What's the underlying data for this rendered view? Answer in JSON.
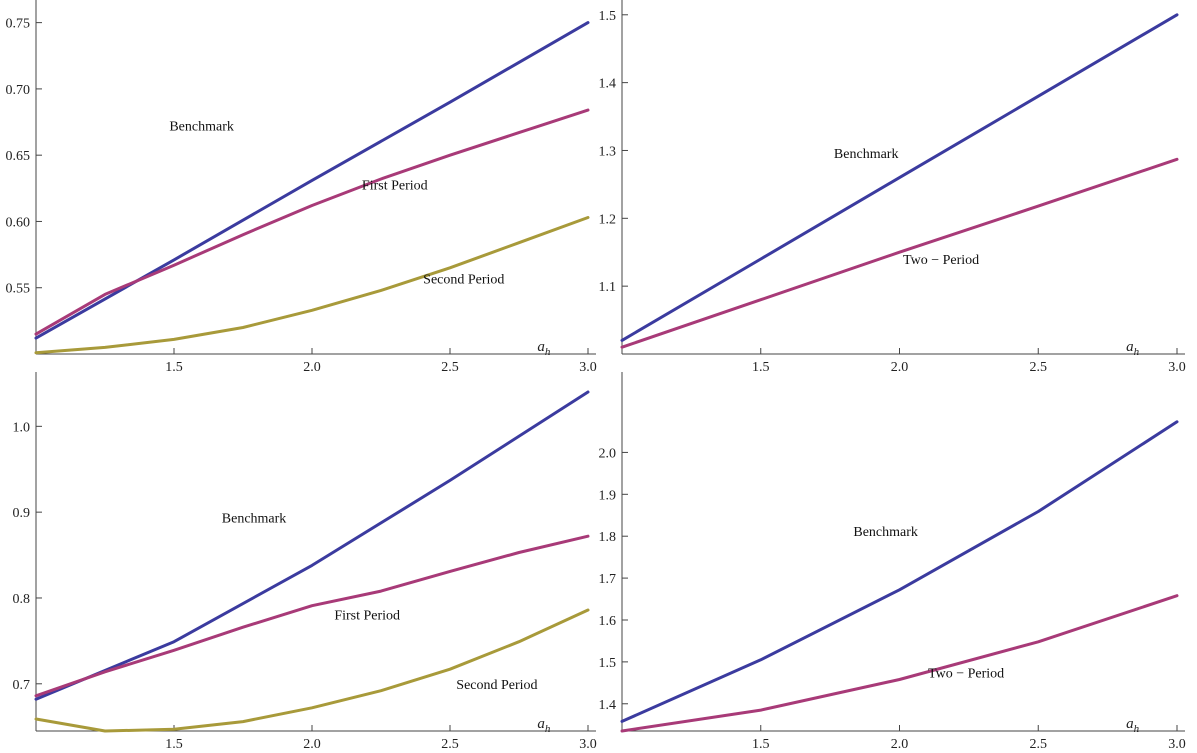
{
  "colors": {
    "benchmark": "#3b3b9f",
    "first": "#a83a78",
    "second": "#a89a3a",
    "axis": "#444444"
  },
  "chart_data": [
    {
      "type": "line",
      "x_label": "a_h",
      "x_label_sub": "h",
      "xlim": [
        1.0,
        3.0
      ],
      "ylim": [
        0.5,
        0.755
      ],
      "xticks": [
        "1.5",
        "2.0",
        "2.5",
        "3.0"
      ],
      "yticks": [
        "0.55",
        "0.60",
        "0.65",
        "0.70",
        "0.75"
      ],
      "series": [
        {
          "name": "Benchmark",
          "color": "#3b3b9f",
          "x": [
            1.0,
            1.5,
            2.0,
            2.5,
            3.0
          ],
          "y": [
            0.512,
            0.571,
            0.631,
            0.69,
            0.75
          ],
          "label_at": [
            1.6,
            0.6685
          ]
        },
        {
          "name": "First Period",
          "color": "#a83a78",
          "x": [
            1.0,
            1.25,
            1.5,
            1.75,
            2.0,
            2.25,
            2.5,
            2.75,
            3.0
          ],
          "y": [
            0.515,
            0.545,
            0.567,
            0.59,
            0.612,
            0.632,
            0.65,
            0.667,
            0.684
          ],
          "label_at": [
            2.3,
            0.624
          ]
        },
        {
          "name": "Second Period",
          "color": "#a89a3a",
          "x": [
            1.0,
            1.25,
            1.5,
            1.75,
            2.0,
            2.25,
            2.5,
            2.75,
            3.0
          ],
          "y": [
            0.501,
            0.505,
            0.511,
            0.52,
            0.533,
            0.548,
            0.565,
            0.584,
            0.603
          ],
          "label_at": [
            2.55,
            0.553
          ]
        }
      ]
    },
    {
      "type": "line",
      "x_label": "a",
      "x_label_sub": "h",
      "xlim": [
        1.0,
        3.0
      ],
      "ylim": [
        1.0,
        1.51
      ],
      "xticks": [
        "1.5",
        "2.0",
        "2.5",
        "3.0"
      ],
      "yticks": [
        "1.1",
        "1.2",
        "1.3",
        "1.4",
        "1.5"
      ],
      "series": [
        {
          "name": "Benchmark",
          "color": "#3b3b9f",
          "x": [
            1.0,
            1.5,
            2.0,
            2.5,
            3.0
          ],
          "y": [
            1.02,
            1.14,
            1.26,
            1.38,
            1.5
          ],
          "label_at": [
            1.88,
            1.289
          ]
        },
        {
          "name": "Two − Period",
          "color": "#a83a78",
          "x": [
            1.0,
            1.5,
            2.0,
            2.5,
            3.0
          ],
          "y": [
            1.01,
            1.08,
            1.15,
            1.218,
            1.287
          ],
          "label_at": [
            2.15,
            1.133
          ]
        }
      ]
    },
    {
      "type": "line",
      "x_label": "a",
      "x_label_sub": "h",
      "xlim": [
        1.0,
        3.0
      ],
      "ylim": [
        0.645,
        1.04
      ],
      "xticks": [
        "1.5",
        "2.0",
        "2.5",
        "3.0"
      ],
      "yticks": [
        "0.7",
        "0.8",
        "0.9",
        "1.0"
      ],
      "series": [
        {
          "name": "Benchmark",
          "color": "#3b3b9f",
          "x": [
            1.0,
            1.5,
            2.0,
            2.5,
            3.0
          ],
          "y": [
            0.682,
            0.749,
            0.838,
            0.937,
            1.04
          ],
          "label_at": [
            1.79,
            0.888
          ]
        },
        {
          "name": "First Period",
          "color": "#a83a78",
          "x": [
            1.0,
            1.25,
            1.5,
            1.75,
            2.0,
            2.25,
            2.5,
            2.75,
            3.0
          ],
          "y": [
            0.686,
            0.714,
            0.739,
            0.766,
            0.791,
            0.808,
            0.831,
            0.853,
            0.872
          ],
          "label_at": [
            2.2,
            0.775
          ]
        },
        {
          "name": "Second Period",
          "color": "#a89a3a",
          "x": [
            1.0,
            1.25,
            1.5,
            1.75,
            2.0,
            2.25,
            2.5,
            2.75,
            3.0
          ],
          "y": [
            0.659,
            0.645,
            0.647,
            0.656,
            0.672,
            0.692,
            0.717,
            0.749,
            0.786
          ],
          "label_at": [
            2.67,
            0.694
          ]
        }
      ]
    },
    {
      "type": "line",
      "x_label": "a",
      "x_label_sub": "h",
      "xlim": [
        1.0,
        3.0
      ],
      "ylim": [
        1.335,
        2.075
      ],
      "xticks": [
        "1.5",
        "2.0",
        "2.5",
        "3.0"
      ],
      "yticks": [
        "1.4",
        "1.5",
        "1.6",
        "1.7",
        "1.8",
        "1.9",
        "2.0"
      ],
      "series": [
        {
          "name": "Benchmark",
          "color": "#3b3b9f",
          "x": [
            1.0,
            1.5,
            2.0,
            2.5,
            3.0
          ],
          "y": [
            1.358,
            1.505,
            1.672,
            1.859,
            2.073
          ],
          "label_at": [
            1.95,
            1.801
          ]
        },
        {
          "name": "Two − Period",
          "color": "#a83a78",
          "x": [
            1.0,
            1.5,
            2.0,
            2.5,
            3.0
          ],
          "y": [
            1.335,
            1.385,
            1.458,
            1.548,
            1.658
          ],
          "label_at": [
            2.24,
            1.463
          ]
        }
      ]
    }
  ]
}
